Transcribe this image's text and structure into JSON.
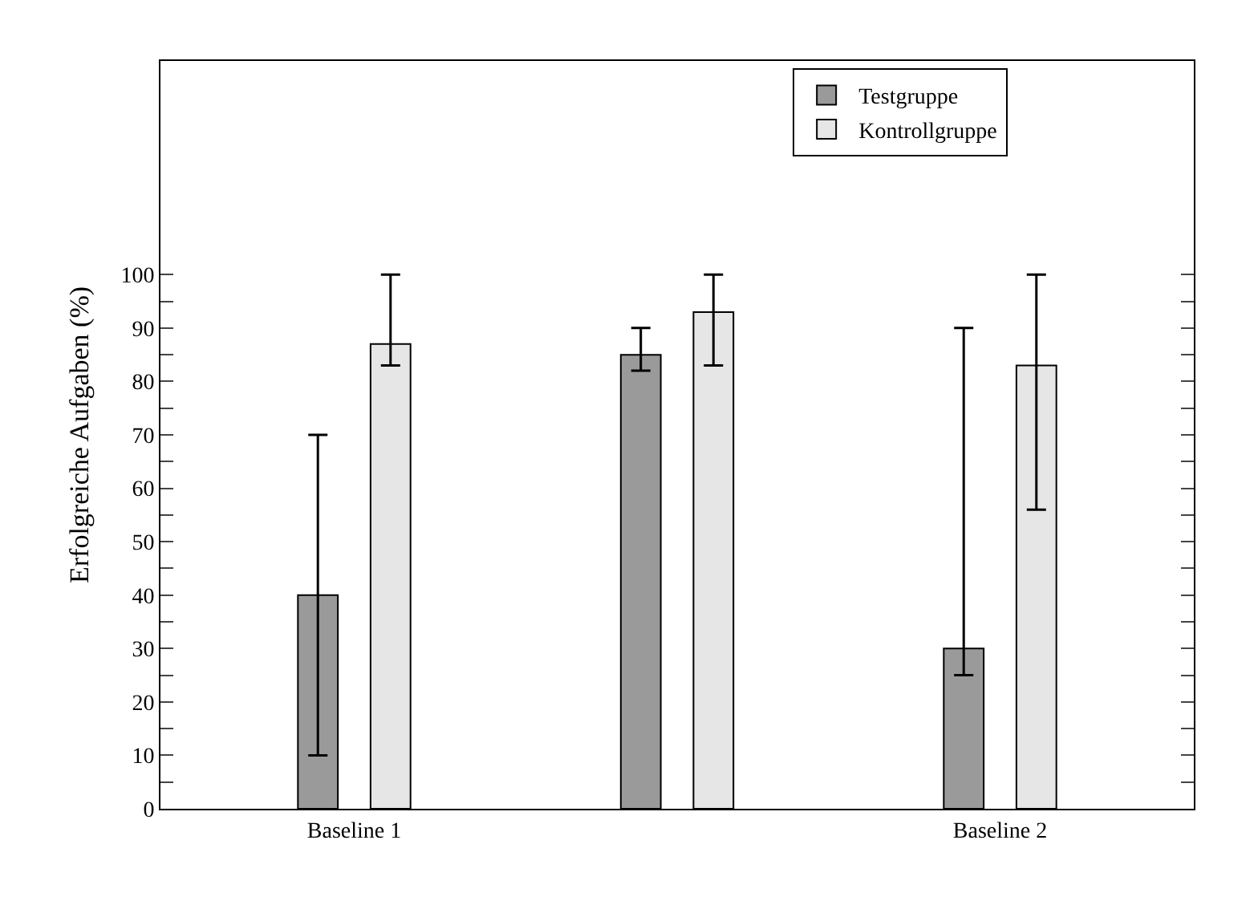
{
  "chart_data": {
    "type": "bar",
    "ylabel": "Erfolgreiche Aufgaben (%)",
    "categories": [
      "Baseline 1",
      null,
      "Baseline 2"
    ],
    "series": [
      {
        "name": "Testgruppe",
        "color": "#9a9a9a",
        "values": [
          40,
          85,
          30
        ],
        "errors": [
          [
            10,
            70
          ],
          [
            82,
            90
          ],
          [
            25,
            90
          ]
        ]
      },
      {
        "name": "Kontrollgruppe",
        "color": "#e6e6e6",
        "values": [
          87,
          93,
          83
        ],
        "errors": [
          [
            83,
            100
          ],
          [
            83,
            100
          ],
          [
            56,
            100
          ]
        ]
      }
    ],
    "ylim": [
      0,
      140
    ],
    "yticks": [
      0,
      {
        "value": 5,
        "label": null
      },
      10,
      {
        "value": 15,
        "label": null
      },
      20,
      {
        "value": 25,
        "label": null
      },
      30,
      {
        "value": 35,
        "label": null
      },
      40,
      {
        "value": 45,
        "label": null
      },
      50,
      {
        "value": 55,
        "label": null
      },
      60,
      {
        "value": 65,
        "label": null
      },
      70,
      {
        "value": 75,
        "label": null
      },
      80,
      {
        "value": 85,
        "label": null
      },
      90,
      {
        "value": 95,
        "label": null
      },
      100
    ],
    "grid": false,
    "legend": "top right"
  }
}
